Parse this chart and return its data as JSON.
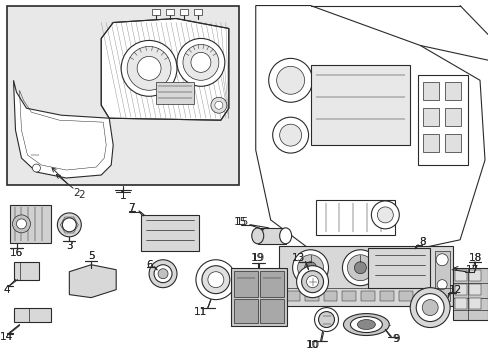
{
  "bg": "#ffffff",
  "lc": "#2a2a2a",
  "lc_thin": "#3a3a3a",
  "gray_light": "#e0e0e0",
  "gray_mid": "#c8c8c8",
  "gray_dark": "#a0a0a0",
  "box_fill": "#e8e8e8"
}
